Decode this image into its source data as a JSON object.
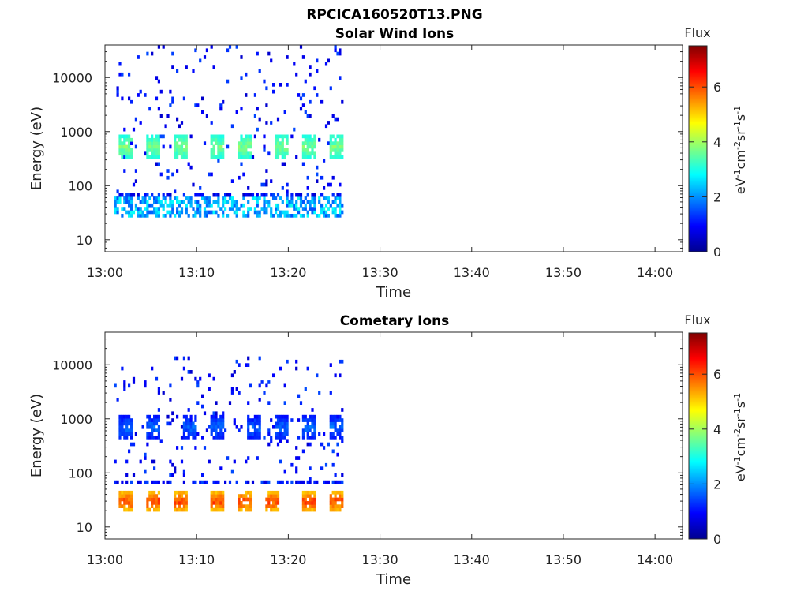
{
  "figure": {
    "title": "RPCICA160520T13.PNG"
  },
  "colormap": [
    "#00008f",
    "#0000ff",
    "#0080ff",
    "#00ffff",
    "#80ff80",
    "#ffff00",
    "#ff8000",
    "#ff0000",
    "#800000"
  ],
  "chart_data": [
    {
      "type": "heatmap",
      "title": "Solar Wind Ions",
      "xlabel": "Time",
      "ylabel": "Energy (eV)",
      "x_ticks": [
        "13:00",
        "13:10",
        "13:20",
        "13:30",
        "13:40",
        "13:50",
        "14:00"
      ],
      "y_ticks": [
        "10",
        "100",
        "1000",
        "10000"
      ],
      "y_scale": "log",
      "xlim": [
        "13:00",
        "14:03"
      ],
      "ylim": [
        6,
        40000
      ],
      "data_xlim": [
        "13:00",
        "13:26"
      ],
      "colorbar": {
        "label": "Flux",
        "unit": "eV-1cm-2sr-1s-1",
        "ticks": [
          "0",
          "2",
          "4",
          "6"
        ],
        "range": [
          0,
          7.5
        ]
      },
      "features": [
        {
          "t": [
            "13:02",
            "13:05",
            "13:08",
            "13:12",
            "13:15",
            "13:19",
            "13:22",
            "13:25"
          ],
          "energy": [
            300,
            900
          ],
          "flux": [
            2.5,
            4.0
          ],
          "label": "periodic solar wind peaks"
        },
        {
          "t_range": [
            "13:00",
            "13:26"
          ],
          "energy": [
            25,
            60
          ],
          "flux": [
            1.5,
            3.0
          ],
          "label": "low energy band"
        },
        {
          "t_range": [
            "13:00",
            "13:26"
          ],
          "energy": [
            60,
            40000
          ],
          "flux": [
            0.5,
            1.5
          ],
          "label": "sparse background"
        }
      ]
    },
    {
      "type": "heatmap",
      "title": "Cometary Ions",
      "xlabel": "Time",
      "ylabel": "Energy (eV)",
      "x_ticks": [
        "13:00",
        "13:10",
        "13:20",
        "13:30",
        "13:40",
        "13:50",
        "14:00"
      ],
      "y_ticks": [
        "10",
        "100",
        "1000",
        "10000"
      ],
      "y_scale": "log",
      "xlim": [
        "13:00",
        "14:03"
      ],
      "ylim": [
        6,
        40000
      ],
      "data_xlim": [
        "13:00",
        "13:26"
      ],
      "colorbar": {
        "label": "Flux",
        "unit": "eV-1cm-2sr-1s-1",
        "ticks": [
          "0",
          "2",
          "4",
          "6"
        ],
        "range": [
          0,
          7.5
        ]
      },
      "features": [
        {
          "t": [
            "13:02",
            "13:05",
            "13:08",
            "13:12",
            "13:15",
            "13:18",
            "13:22",
            "13:25"
          ],
          "energy": [
            20,
            45
          ],
          "flux": [
            4.5,
            6.5
          ],
          "label": "cometary low-energy clusters"
        },
        {
          "t": [
            "13:02",
            "13:05",
            "13:09",
            "13:12",
            "13:16",
            "13:19",
            "13:22",
            "13:25"
          ],
          "energy": [
            400,
            1200
          ],
          "flux": [
            0.5,
            2.0
          ],
          "label": "intermittent mid-energy ions"
        },
        {
          "t_range": [
            "13:00",
            "13:26"
          ],
          "energy": [
            60,
            15000
          ],
          "flux": [
            0.5,
            1.5
          ],
          "label": "sparse background"
        }
      ]
    }
  ]
}
